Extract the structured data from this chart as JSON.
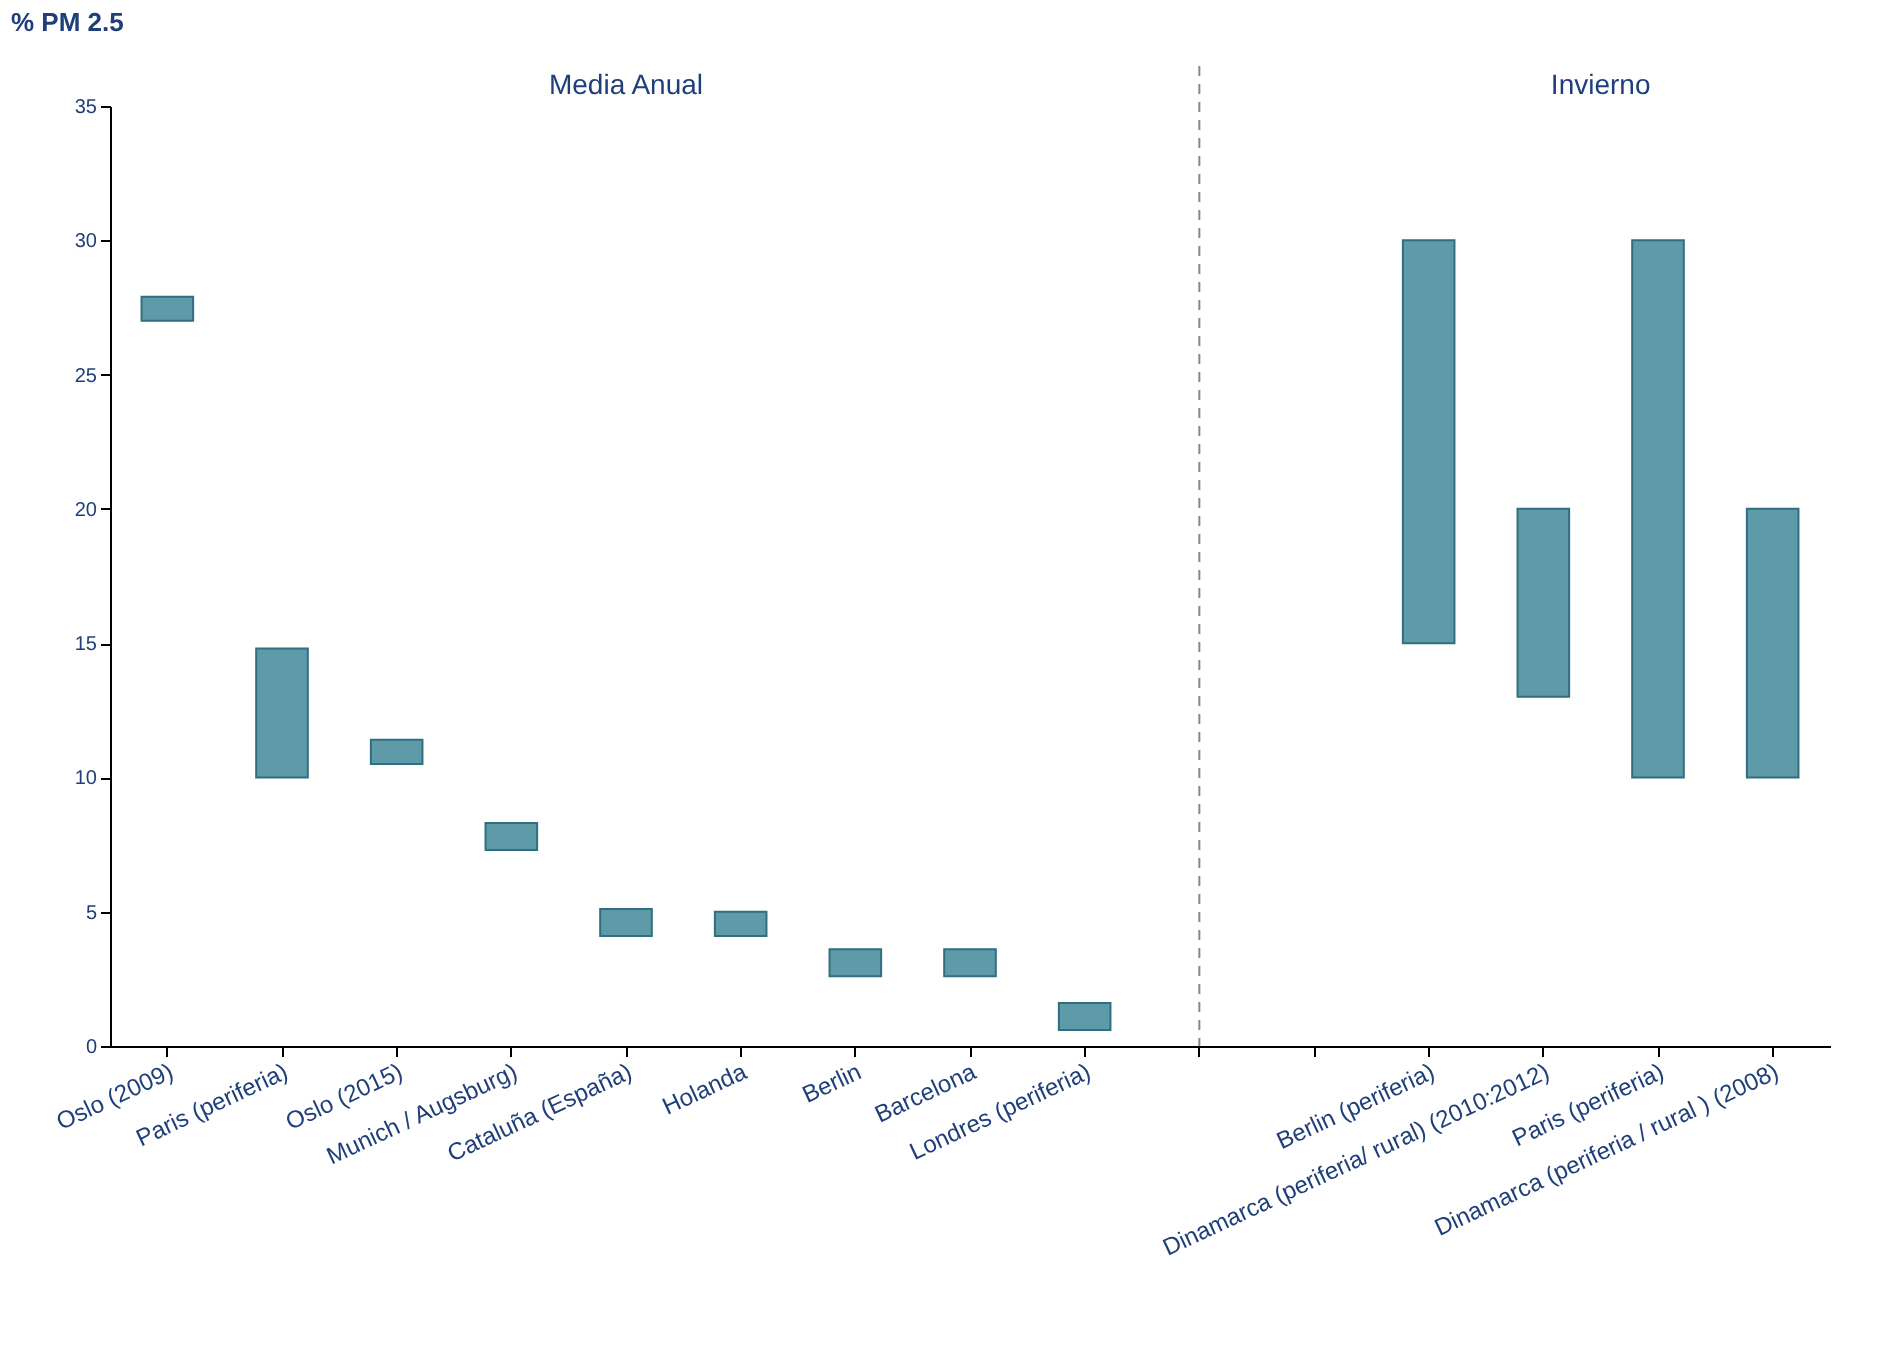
{
  "chart_data": {
    "type": "bar",
    "ylabel": "% PM 2.5",
    "categories": [
      "Oslo (2009)",
      "Paris (periferia)",
      "Oslo (2015)",
      "Munich / Augsburg)",
      "Cataluña (España)",
      "Holanda",
      "Berlin",
      "Barcelona",
      "Londres (periferia)",
      null,
      null,
      "Berlin (periferia)",
      "Dinamarca (periferia/ rural) (2010:2012)",
      "Paris (periferia)",
      "Dinamarca (periferia / rural ) (2008)"
    ],
    "base": [
      27,
      10,
      10.5,
      7.3,
      4.1,
      4.1,
      2.6,
      2.6,
      0.6,
      null,
      null,
      15,
      13,
      10,
      10
    ],
    "values": [
      0.9,
      4.8,
      0.9,
      1,
      1,
      0.9,
      1,
      1,
      1,
      null,
      null,
      15,
      7,
      20,
      10
    ],
    "color": "#5f9aa8",
    "ylim": [
      0,
      35
    ],
    "yticks": [
      0,
      5,
      10,
      15,
      20,
      25,
      30,
      35
    ],
    "annotations": [
      "Media Anual",
      "Invierno"
    ]
  }
}
